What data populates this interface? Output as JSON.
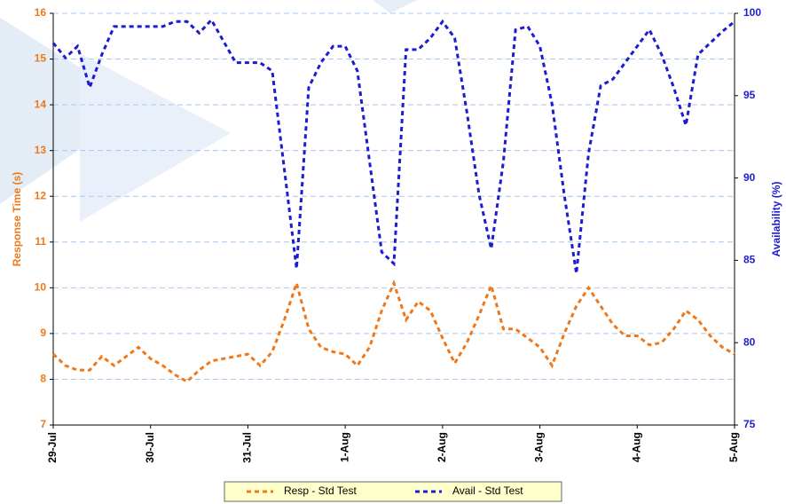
{
  "chart_data": {
    "type": "line",
    "x": [
      0,
      0.125,
      0.25,
      0.375,
      0.5,
      0.625,
      0.75,
      0.875,
      1,
      1.125,
      1.25,
      1.375,
      1.5,
      1.625,
      1.75,
      1.875,
      2,
      2.125,
      2.25,
      2.375,
      2.5,
      2.625,
      2.75,
      2.875,
      3,
      3.125,
      3.25,
      3.375,
      3.5,
      3.625,
      3.75,
      3.875,
      4,
      4.125,
      4.25,
      4.375,
      4.5,
      4.625,
      4.75,
      4.875,
      5,
      5.125,
      5.25,
      5.375,
      5.5,
      5.625,
      5.75,
      5.875,
      6,
      6.125,
      6.25,
      6.375,
      6.5,
      6.625,
      6.75,
      6.875,
      7
    ],
    "xlim": [
      0,
      7
    ],
    "xticks": [
      {
        "value": 0,
        "label": "29-Jul"
      },
      {
        "value": 1,
        "label": "30-Jul"
      },
      {
        "value": 2,
        "label": "31-Jul"
      },
      {
        "value": 3,
        "label": "1-Aug"
      },
      {
        "value": 4,
        "label": "2-Aug"
      },
      {
        "value": 5,
        "label": "3-Aug"
      },
      {
        "value": 6,
        "label": "4-Aug"
      },
      {
        "value": 7,
        "label": "5-Aug"
      }
    ],
    "ylabel": "Response Time (s)",
    "y2label": "Availability (%)",
    "ylim": [
      7,
      16
    ],
    "yticks": [
      7,
      8,
      9,
      10,
      11,
      12,
      13,
      14,
      15,
      16
    ],
    "y2lim": [
      75,
      100
    ],
    "y2ticks": [
      75,
      80,
      85,
      90,
      95,
      100
    ],
    "grid": true,
    "legend": "bottom",
    "series": [
      {
        "name": "Resp - Std Test",
        "color": "#f07818",
        "values": [
          8.55,
          8.3,
          8.2,
          8.2,
          8.5,
          8.3,
          8.5,
          8.7,
          8.45,
          8.3,
          8.1,
          7.95,
          8.2,
          8.4,
          8.45,
          8.5,
          8.55,
          8.3,
          8.6,
          9.3,
          10.1,
          9.1,
          8.7,
          8.6,
          8.55,
          8.3,
          8.7,
          9.5,
          10.1,
          9.3,
          9.7,
          9.5,
          8.9,
          8.35,
          8.8,
          9.4,
          10.05,
          9.1,
          9.1,
          8.9,
          8.7,
          8.3,
          9.0,
          9.6,
          10.0,
          9.6,
          9.2,
          8.95,
          8.95,
          8.75,
          8.8,
          9.1,
          9.5,
          9.3,
          8.95,
          8.7,
          8.55
        ]
      },
      {
        "name": "Avail - Std Test",
        "color": "#1c1cd0",
        "axis": "y2",
        "values": [
          98.2,
          97.3,
          98.0,
          95.5,
          97.5,
          99.2,
          99.2,
          99.2,
          99.2,
          99.2,
          99.5,
          99.5,
          98.8,
          99.6,
          98.3,
          97.0,
          97.0,
          97.0,
          96.5,
          90.5,
          84.5,
          95.5,
          97,
          98,
          98,
          96.5,
          91,
          85.5,
          84.8,
          97.8,
          97.8,
          98.5,
          99.5,
          98.5,
          94,
          89,
          85.7,
          91,
          99,
          99.2,
          98,
          94.5,
          89,
          84.2,
          91.5,
          95.6,
          96,
          97,
          98,
          99,
          97.5,
          95.5,
          93.2,
          97.5,
          98.2,
          98.9,
          99.5
        ]
      }
    ]
  }
}
